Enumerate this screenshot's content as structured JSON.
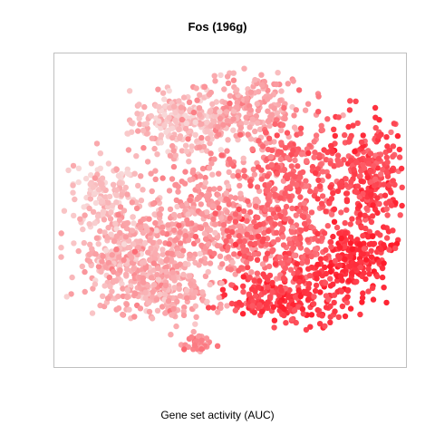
{
  "chart_data": {
    "type": "scatter",
    "title": "Fos (196g)",
    "xlabel": "Gene set activity (AUC)",
    "ylabel": "",
    "grid": false,
    "legend": "none",
    "color_scale": {
      "low": "#f8d8d8",
      "high": "#ff1a2a"
    },
    "clusters": [
      {
        "x": -8,
        "y": 23,
        "sx": 5.5,
        "sy": 3.0,
        "n": 240,
        "level": 0.12
      },
      {
        "x": 5,
        "y": 26,
        "sx": 6.5,
        "sy": 4.0,
        "n": 220,
        "level": 0.28
      },
      {
        "x": -25,
        "y": 8,
        "sx": 3.5,
        "sy": 3.5,
        "n": 110,
        "level": 0.08
      },
      {
        "x": -20,
        "y": -5,
        "sx": 6.0,
        "sy": 4.5,
        "n": 320,
        "level": 0.2
      },
      {
        "x": -3,
        "y": 2,
        "sx": 8.0,
        "sy": 7.0,
        "n": 440,
        "level": 0.33
      },
      {
        "x": 15,
        "y": 12,
        "sx": 5.0,
        "sy": 5.0,
        "n": 210,
        "level": 0.58
      },
      {
        "x": 13,
        "y": -3,
        "sx": 6.0,
        "sy": 5.0,
        "n": 260,
        "level": 0.62
      },
      {
        "x": 31,
        "y": 12,
        "sx": 5.0,
        "sy": 6.0,
        "n": 300,
        "level": 0.76
      },
      {
        "x": 29,
        "y": -6,
        "sx": 4.5,
        "sy": 4.0,
        "n": 210,
        "level": 0.88
      },
      {
        "x": 15,
        "y": -15,
        "sx": 6.5,
        "sy": 3.0,
        "n": 230,
        "level": 0.82
      },
      {
        "x": -12,
        "y": -14,
        "sx": 6.0,
        "sy": 3.0,
        "n": 210,
        "level": 0.24
      },
      {
        "x": -5,
        "y": -25,
        "sx": 1.5,
        "sy": 1.0,
        "n": 40,
        "level": 0.36
      }
    ],
    "xlim": [
      -36,
      40
    ],
    "ylim": [
      -30,
      38
    ]
  }
}
